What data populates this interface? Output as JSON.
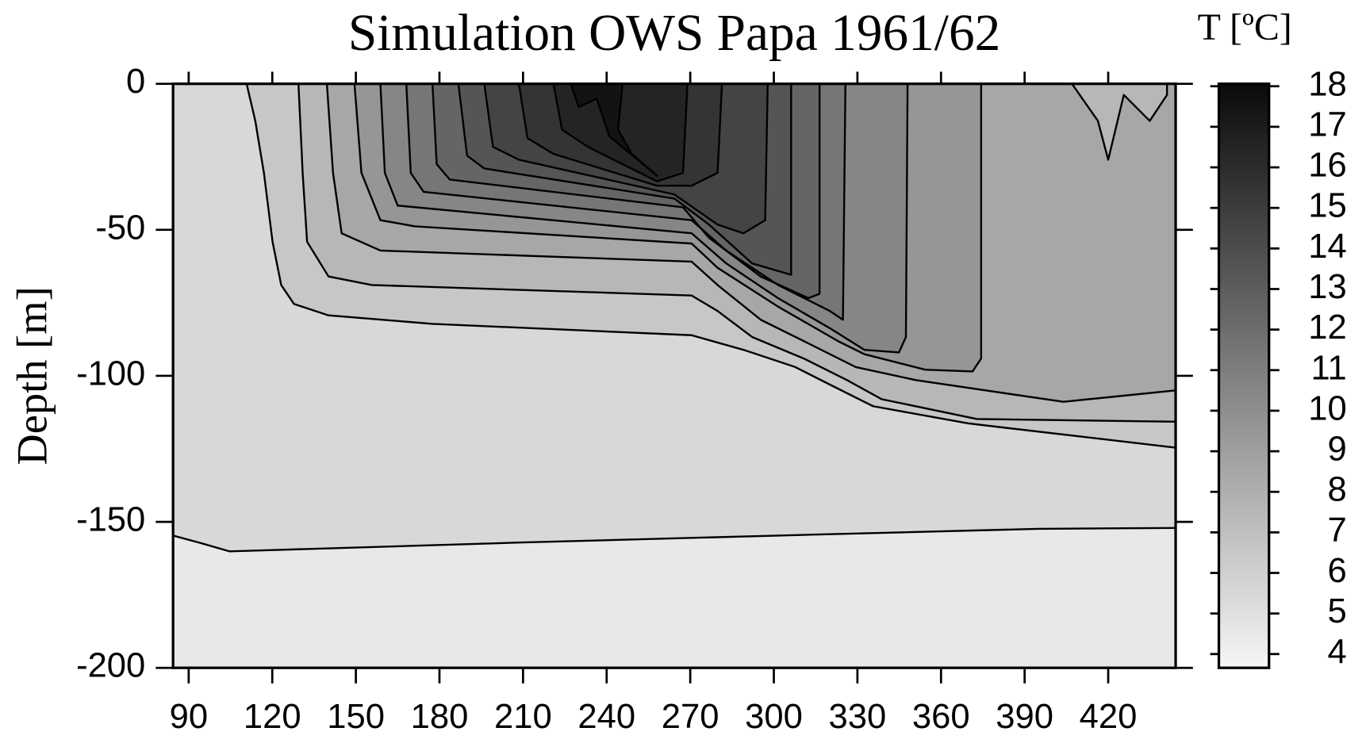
{
  "chart_data": {
    "type": "contour",
    "title": "Simulation OWS Papa 1961/62",
    "ylabel": "Depth [m]",
    "xlim": [
      84.4,
      444.2
    ],
    "xticks": [
      90,
      120,
      150,
      180,
      210,
      240,
      270,
      300,
      330,
      360,
      390,
      420
    ],
    "ylim": [
      -200,
      0
    ],
    "yticks": [
      -200,
      -150,
      -100,
      -50,
      0
    ],
    "colorbar": {
      "label": "T [ºC]",
      "clim": [
        3.66,
        18.06
      ],
      "ticks": [
        4,
        5,
        6,
        7,
        8,
        9,
        10,
        11,
        12,
        13,
        14,
        15,
        16,
        17,
        18
      ],
      "colors": [
        "#f6f6f6",
        "#0a0a0a"
      ]
    },
    "line_color": "#000000",
    "contours": [
      {
        "level": 5,
        "points": [
          [
            84.4,
            -154.7
          ],
          [
            93.7,
            -157.1
          ],
          [
            104.6,
            -160.1
          ],
          [
            115.4,
            -159.8
          ],
          [
            208.5,
            -157.1
          ],
          [
            301.5,
            -154.7
          ],
          [
            394.6,
            -152.4
          ],
          [
            444.2,
            -152.1
          ]
        ]
      },
      {
        "level": 6,
        "points": [
          [
            110.8,
            0
          ],
          [
            113.9,
            -12.7
          ],
          [
            117.0,
            -30.5
          ],
          [
            120.1,
            -54.1
          ],
          [
            123.2,
            -68.9
          ],
          [
            127.8,
            -75.4
          ],
          [
            140.2,
            -79.3
          ],
          [
            177.5,
            -82.2
          ],
          [
            270.5,
            -86.1
          ],
          [
            289.1,
            -91.1
          ],
          [
            307.7,
            -97.0
          ],
          [
            320.1,
            -103.0
          ],
          [
            335.6,
            -110.4
          ],
          [
            369.8,
            -116.3
          ],
          [
            444.2,
            -124.6
          ]
        ]
      },
      {
        "level": 7,
        "points": [
          [
            129.4,
            0
          ],
          [
            130.9,
            -30.5
          ],
          [
            132.5,
            -54.1
          ],
          [
            140.2,
            -66.0
          ],
          [
            155.7,
            -68.9
          ],
          [
            270.5,
            -72.5
          ],
          [
            279.8,
            -77.8
          ],
          [
            292.2,
            -86.7
          ],
          [
            310.8,
            -94.1
          ],
          [
            326.3,
            -101.5
          ],
          [
            338.7,
            -108.0
          ],
          [
            372.9,
            -114.8
          ],
          [
            444.2,
            -115.7
          ]
        ]
      },
      {
        "level": 8,
        "points": [
          [
            139.6,
            0
          ],
          [
            141.8,
            -30.5
          ],
          [
            144.9,
            -51.2
          ],
          [
            158.8,
            -57.1
          ],
          [
            270.5,
            -60.9
          ],
          [
            279.8,
            -68.9
          ],
          [
            295.3,
            -80.8
          ],
          [
            313.9,
            -89.6
          ],
          [
            329.4,
            -97.0
          ],
          [
            351.1,
            -101.5
          ],
          [
            403.9,
            -108.9
          ],
          [
            444.2,
            -105.0
          ]
        ]
      },
      {
        "level": 9,
        "points": [
          [
            149.5,
            0
          ],
          [
            152.0,
            -30.5
          ],
          [
            158.8,
            -46.7
          ],
          [
            171.2,
            -48.8
          ],
          [
            270.5,
            -54.7
          ],
          [
            279.8,
            -63.0
          ],
          [
            301.5,
            -76.3
          ],
          [
            323.2,
            -88.2
          ],
          [
            332.5,
            -92.6
          ],
          [
            354.3,
            -97.9
          ],
          [
            371.3,
            -98.5
          ],
          [
            374.4,
            -94.1
          ],
          [
            374.4,
            0
          ]
        ]
      },
      {
        "level": 10,
        "points": [
          [
            158.8,
            0
          ],
          [
            160.4,
            -30.5
          ],
          [
            165.0,
            -41.7
          ],
          [
            270.5,
            -51.2
          ],
          [
            282.9,
            -61.5
          ],
          [
            301.5,
            -73.4
          ],
          [
            320.1,
            -83.7
          ],
          [
            332.5,
            -91.1
          ],
          [
            344.9,
            -92.0
          ],
          [
            347.4,
            -86.7
          ],
          [
            348.0,
            0
          ]
        ]
      },
      {
        "level": 11,
        "points": [
          [
            168.1,
            0
          ],
          [
            169.7,
            -30.5
          ],
          [
            174.3,
            -37.0
          ],
          [
            270.5,
            -46.7
          ],
          [
            282.9,
            -57.1
          ],
          [
            301.5,
            -68.9
          ],
          [
            320.1,
            -77.8
          ],
          [
            324.8,
            -80.8
          ],
          [
            325.7,
            0
          ]
        ]
      },
      {
        "level": 12,
        "points": [
          [
            177.5,
            0
          ],
          [
            179.0,
            -27.5
          ],
          [
            183.7,
            -32.8
          ],
          [
            267.4,
            -42.3
          ],
          [
            276.7,
            -52.7
          ],
          [
            295.3,
            -66.0
          ],
          [
            312.4,
            -73.4
          ],
          [
            316.4,
            -71.9
          ],
          [
            316.4,
            0
          ]
        ]
      },
      {
        "level": 13,
        "points": [
          [
            186.8,
            0
          ],
          [
            189.9,
            -24.6
          ],
          [
            196.1,
            -29.0
          ],
          [
            264.3,
            -39.3
          ],
          [
            276.7,
            -48.2
          ],
          [
            292.2,
            -61.5
          ],
          [
            306.2,
            -65.4
          ],
          [
            306.2,
            0
          ]
        ]
      },
      {
        "level": 14,
        "points": [
          [
            196.1,
            0
          ],
          [
            199.2,
            -21.6
          ],
          [
            208.5,
            -26.0
          ],
          [
            264.3,
            -37.9
          ],
          [
            279.8,
            -48.2
          ],
          [
            289.1,
            -51.2
          ],
          [
            296.9,
            -46.7
          ],
          [
            297.8,
            0
          ]
        ]
      },
      {
        "level": 15,
        "points": [
          [
            208.5,
            0
          ],
          [
            211.6,
            -18.6
          ],
          [
            220.9,
            -24.0
          ],
          [
            258.1,
            -34.9
          ],
          [
            270.5,
            -34.9
          ],
          [
            279.8,
            -30.5
          ],
          [
            281.4,
            0
          ]
        ]
      },
      {
        "level": 16,
        "points": [
          [
            220.9,
            0
          ],
          [
            224.0,
            -15.7
          ],
          [
            233.3,
            -21.6
          ],
          [
            258.1,
            -33.4
          ],
          [
            267.4,
            -30.5
          ],
          [
            269.0,
            0
          ]
        ]
      },
      {
        "level": 17,
        "points": [
          [
            227.1,
            0
          ],
          [
            230.0,
            -8.0
          ],
          [
            236.4,
            -5.0
          ],
          [
            241.0,
            -18.0
          ],
          [
            258.1,
            -31.5
          ],
          [
            249.0,
            -24.0
          ],
          [
            244.1,
            -15.7
          ],
          [
            245.7,
            0
          ]
        ]
      },
      {
        "level": 7,
        "points": [
          [
            407.0,
            0
          ],
          [
            416.3,
            -12.7
          ],
          [
            420.0,
            -26.0
          ],
          [
            425.6,
            -3.8
          ],
          [
            434.9,
            -12.7
          ],
          [
            441.1,
            -3.8
          ],
          [
            441.1,
            0
          ]
        ]
      }
    ]
  }
}
